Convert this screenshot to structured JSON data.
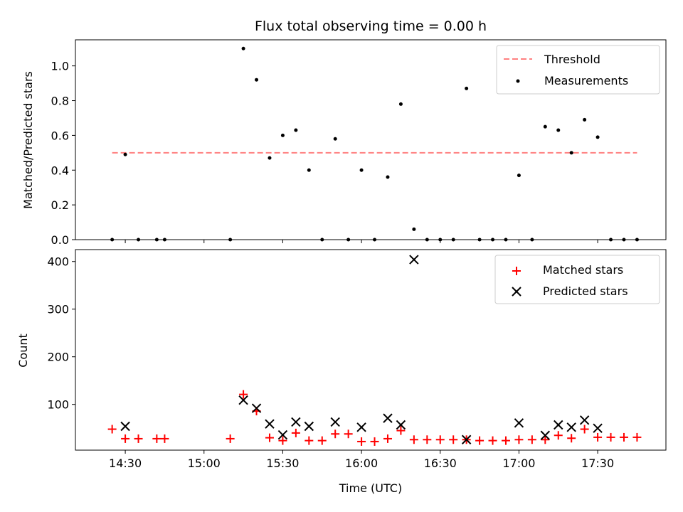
{
  "chart_data": {
    "title": "Flux total observing time = 0.00 h",
    "xlabel": "Time (UTC)",
    "x_ticks": [
      "14:30",
      "15:00",
      "15:30",
      "16:00",
      "16:30",
      "17:00",
      "17:30"
    ],
    "panels": [
      {
        "type": "scatter",
        "ylabel": "Matched/Predicted stars",
        "ylim": [
          0,
          1.15
        ],
        "y_ticks": [
          "0.0",
          "0.2",
          "0.4",
          "0.6",
          "0.8",
          "1.0"
        ],
        "y_tick_values": [
          0,
          0.2,
          0.4,
          0.6,
          0.8,
          1.0
        ],
        "legend_position": "top-right",
        "threshold": {
          "name": "Threshold",
          "value": 0.5,
          "x_range": [
            "14:25",
            "17:45"
          ],
          "color": "#ff8080",
          "style": "dashed"
        },
        "series": [
          {
            "name": "Measurements",
            "marker": "dot",
            "color": "#000000",
            "x": [
              "14:25",
              "14:30",
              "14:35",
              "14:42",
              "14:45",
              "15:10",
              "15:15",
              "15:20",
              "15:25",
              "15:30",
              "15:35",
              "15:40",
              "15:45",
              "15:50",
              "15:55",
              "16:00",
              "16:05",
              "16:10",
              "16:15",
              "16:20",
              "16:25",
              "16:30",
              "16:35",
              "16:40",
              "16:45",
              "16:50",
              "16:55",
              "17:00",
              "17:05",
              "17:10",
              "17:15",
              "17:20",
              "17:25",
              "17:30",
              "17:35",
              "17:40",
              "17:45"
            ],
            "y": [
              0,
              0.49,
              0,
              0,
              0,
              0,
              1.1,
              0.92,
              0.47,
              0.6,
              0.63,
              0.4,
              0,
              0.58,
              0,
              0.4,
              0,
              0.36,
              0.78,
              0.06,
              0,
              0,
              0,
              0.87,
              0,
              0,
              0,
              0.37,
              0,
              0.65,
              0.63,
              0.5,
              0.69,
              0.59,
              0,
              0,
              0
            ]
          }
        ]
      },
      {
        "type": "scatter",
        "ylabel": "Count",
        "ylim": [
          4,
          425
        ],
        "y_ticks": [
          "100",
          "200",
          "300",
          "400"
        ],
        "y_tick_values": [
          100,
          200,
          300,
          400
        ],
        "legend_position": "top-right",
        "series": [
          {
            "name": "Matched stars",
            "marker": "plus",
            "color": "#ff0000",
            "x": [
              "14:25",
              "14:30",
              "14:35",
              "14:42",
              "14:45",
              "15:10",
              "15:15",
              "15:20",
              "15:25",
              "15:30",
              "15:35",
              "15:40",
              "15:45",
              "15:50",
              "15:55",
              "16:00",
              "16:05",
              "16:10",
              "16:15",
              "16:20",
              "16:25",
              "16:30",
              "16:35",
              "16:40",
              "16:45",
              "16:50",
              "16:55",
              "17:00",
              "17:05",
              "17:10",
              "17:15",
              "17:20",
              "17:25",
              "17:30",
              "17:35",
              "17:40",
              "17:45"
            ],
            "y": [
              48,
              28,
              28,
              28,
              28,
              28,
              121,
              86,
              30,
              24,
              40,
              24,
              24,
              38,
              38,
              22,
              22,
              28,
              45,
              26,
              26,
              26,
              26,
              26,
              24,
              24,
              24,
              26,
              26,
              26,
              35,
              29,
              48,
              31,
              31,
              31,
              31
            ]
          },
          {
            "name": "Predicted stars",
            "marker": "x",
            "color": "#000000",
            "x": [
              "14:30",
              "15:15",
              "15:20",
              "15:25",
              "15:30",
              "15:35",
              "15:40",
              "15:50",
              "16:00",
              "16:10",
              "16:15",
              "16:20",
              "16:40",
              "17:00",
              "17:10",
              "17:15",
              "17:20",
              "17:25",
              "17:30"
            ],
            "y": [
              54,
              109,
              92,
              59,
              36,
              63,
              54,
              63,
              52,
              71,
              57,
              404,
              26,
              61,
              35,
              57,
              52,
              67,
              50
            ]
          }
        ]
      }
    ]
  }
}
